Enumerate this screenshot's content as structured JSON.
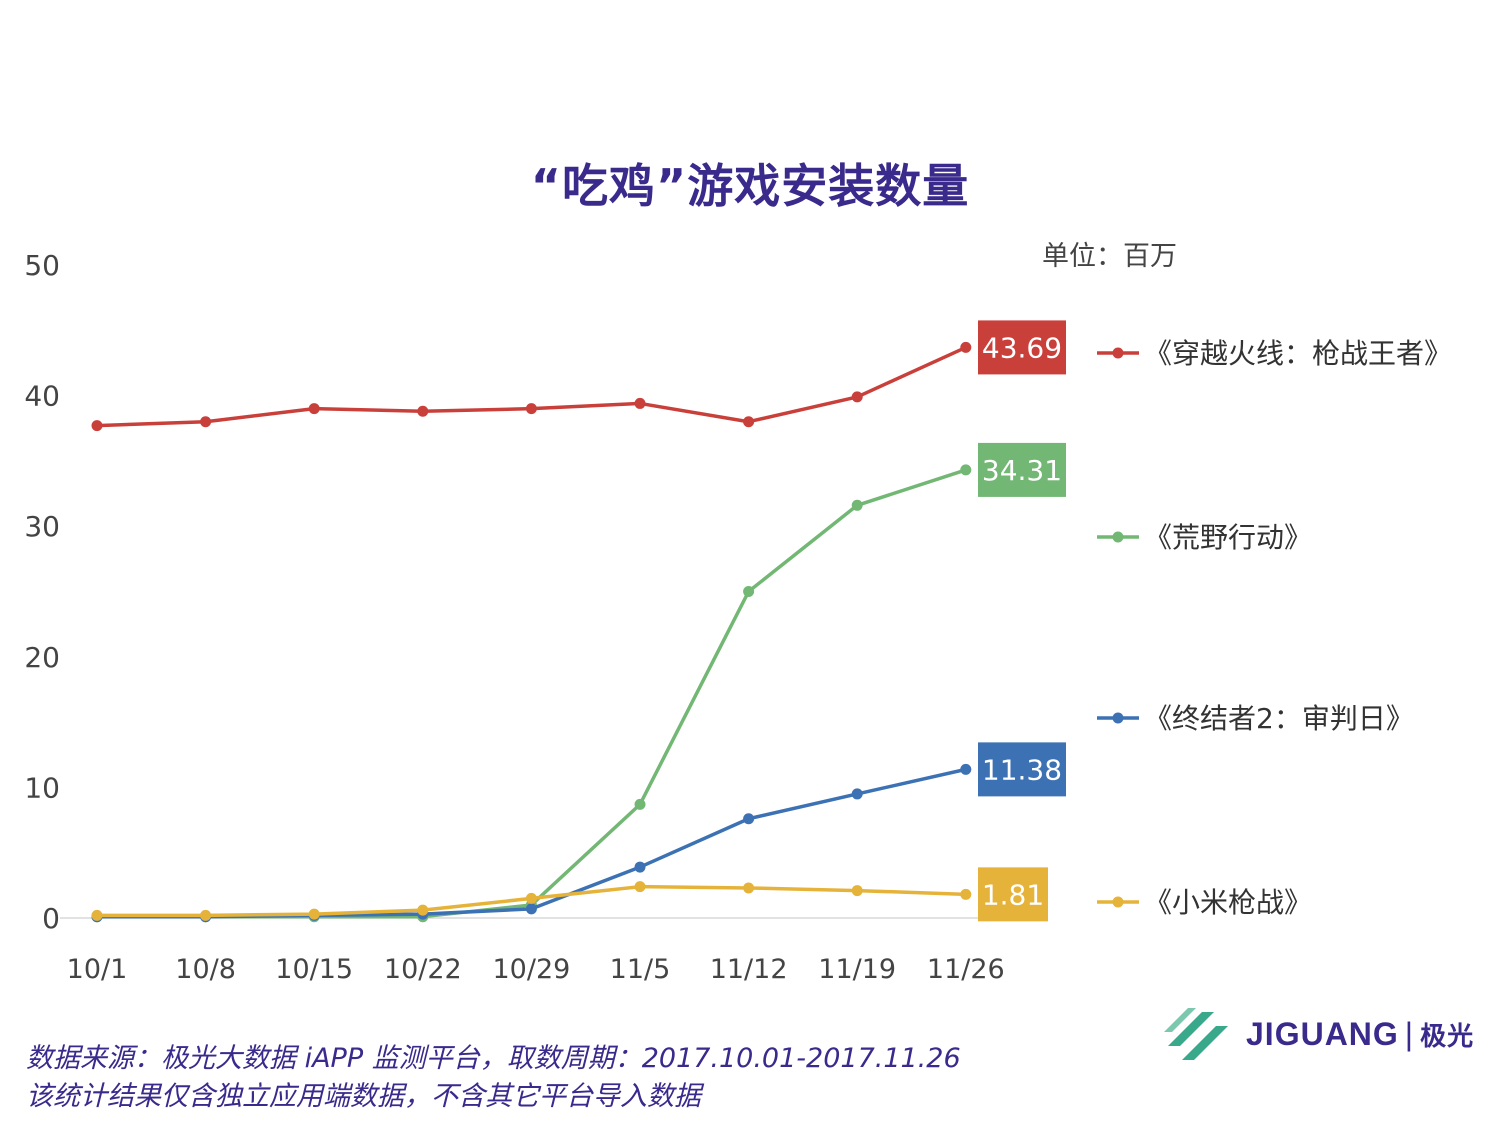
{
  "title": "“吃鸡”游戏安装数量",
  "unit_label": "单位：百万",
  "chart_data": {
    "type": "line",
    "title": "“吃鸡”游戏安装数量",
    "categories": [
      "10/1",
      "10/8",
      "10/15",
      "10/22",
      "10/29",
      "11/5",
      "11/12",
      "11/19",
      "11/26"
    ],
    "ylim": [
      0,
      50
    ],
    "yticks": [
      0,
      10,
      20,
      30,
      40,
      50
    ],
    "series": [
      {
        "name": "《穿越火线：枪战王者》",
        "color": "#c9403b",
        "values": [
          37.7,
          38.0,
          39.0,
          38.8,
          39.0,
          39.4,
          38.0,
          39.9,
          43.69
        ],
        "end_label": "43.69"
      },
      {
        "name": "《荒野行动》",
        "color": "#72b774",
        "values": [
          0.1,
          0.1,
          0.1,
          0.1,
          1.0,
          8.7,
          25.0,
          31.6,
          34.31
        ],
        "end_label": "34.31"
      },
      {
        "name": "《终结者2：审判日》",
        "color": "#3c72b4",
        "values": [
          0.1,
          0.1,
          0.2,
          0.3,
          0.7,
          3.9,
          7.6,
          9.5,
          11.38
        ],
        "end_label": "11.38"
      },
      {
        "name": "《小米枪战》",
        "color": "#e6b33a",
        "values": [
          0.2,
          0.2,
          0.3,
          0.6,
          1.5,
          2.4,
          2.3,
          2.1,
          1.81
        ],
        "end_label": "1.81"
      }
    ]
  },
  "footer": {
    "line1": "数据来源：极光大数据 iAPP 监测平台，取数周期：2017.10.01-2017.11.26",
    "line2": "该统计结果仅含独立应用端数据，不含其它平台导入数据"
  },
  "logo": {
    "brand": "JIGUANG",
    "separator": "|",
    "cn": "极光",
    "colors": {
      "mark": "#3aa88a",
      "text": "#3a2a8c"
    }
  }
}
